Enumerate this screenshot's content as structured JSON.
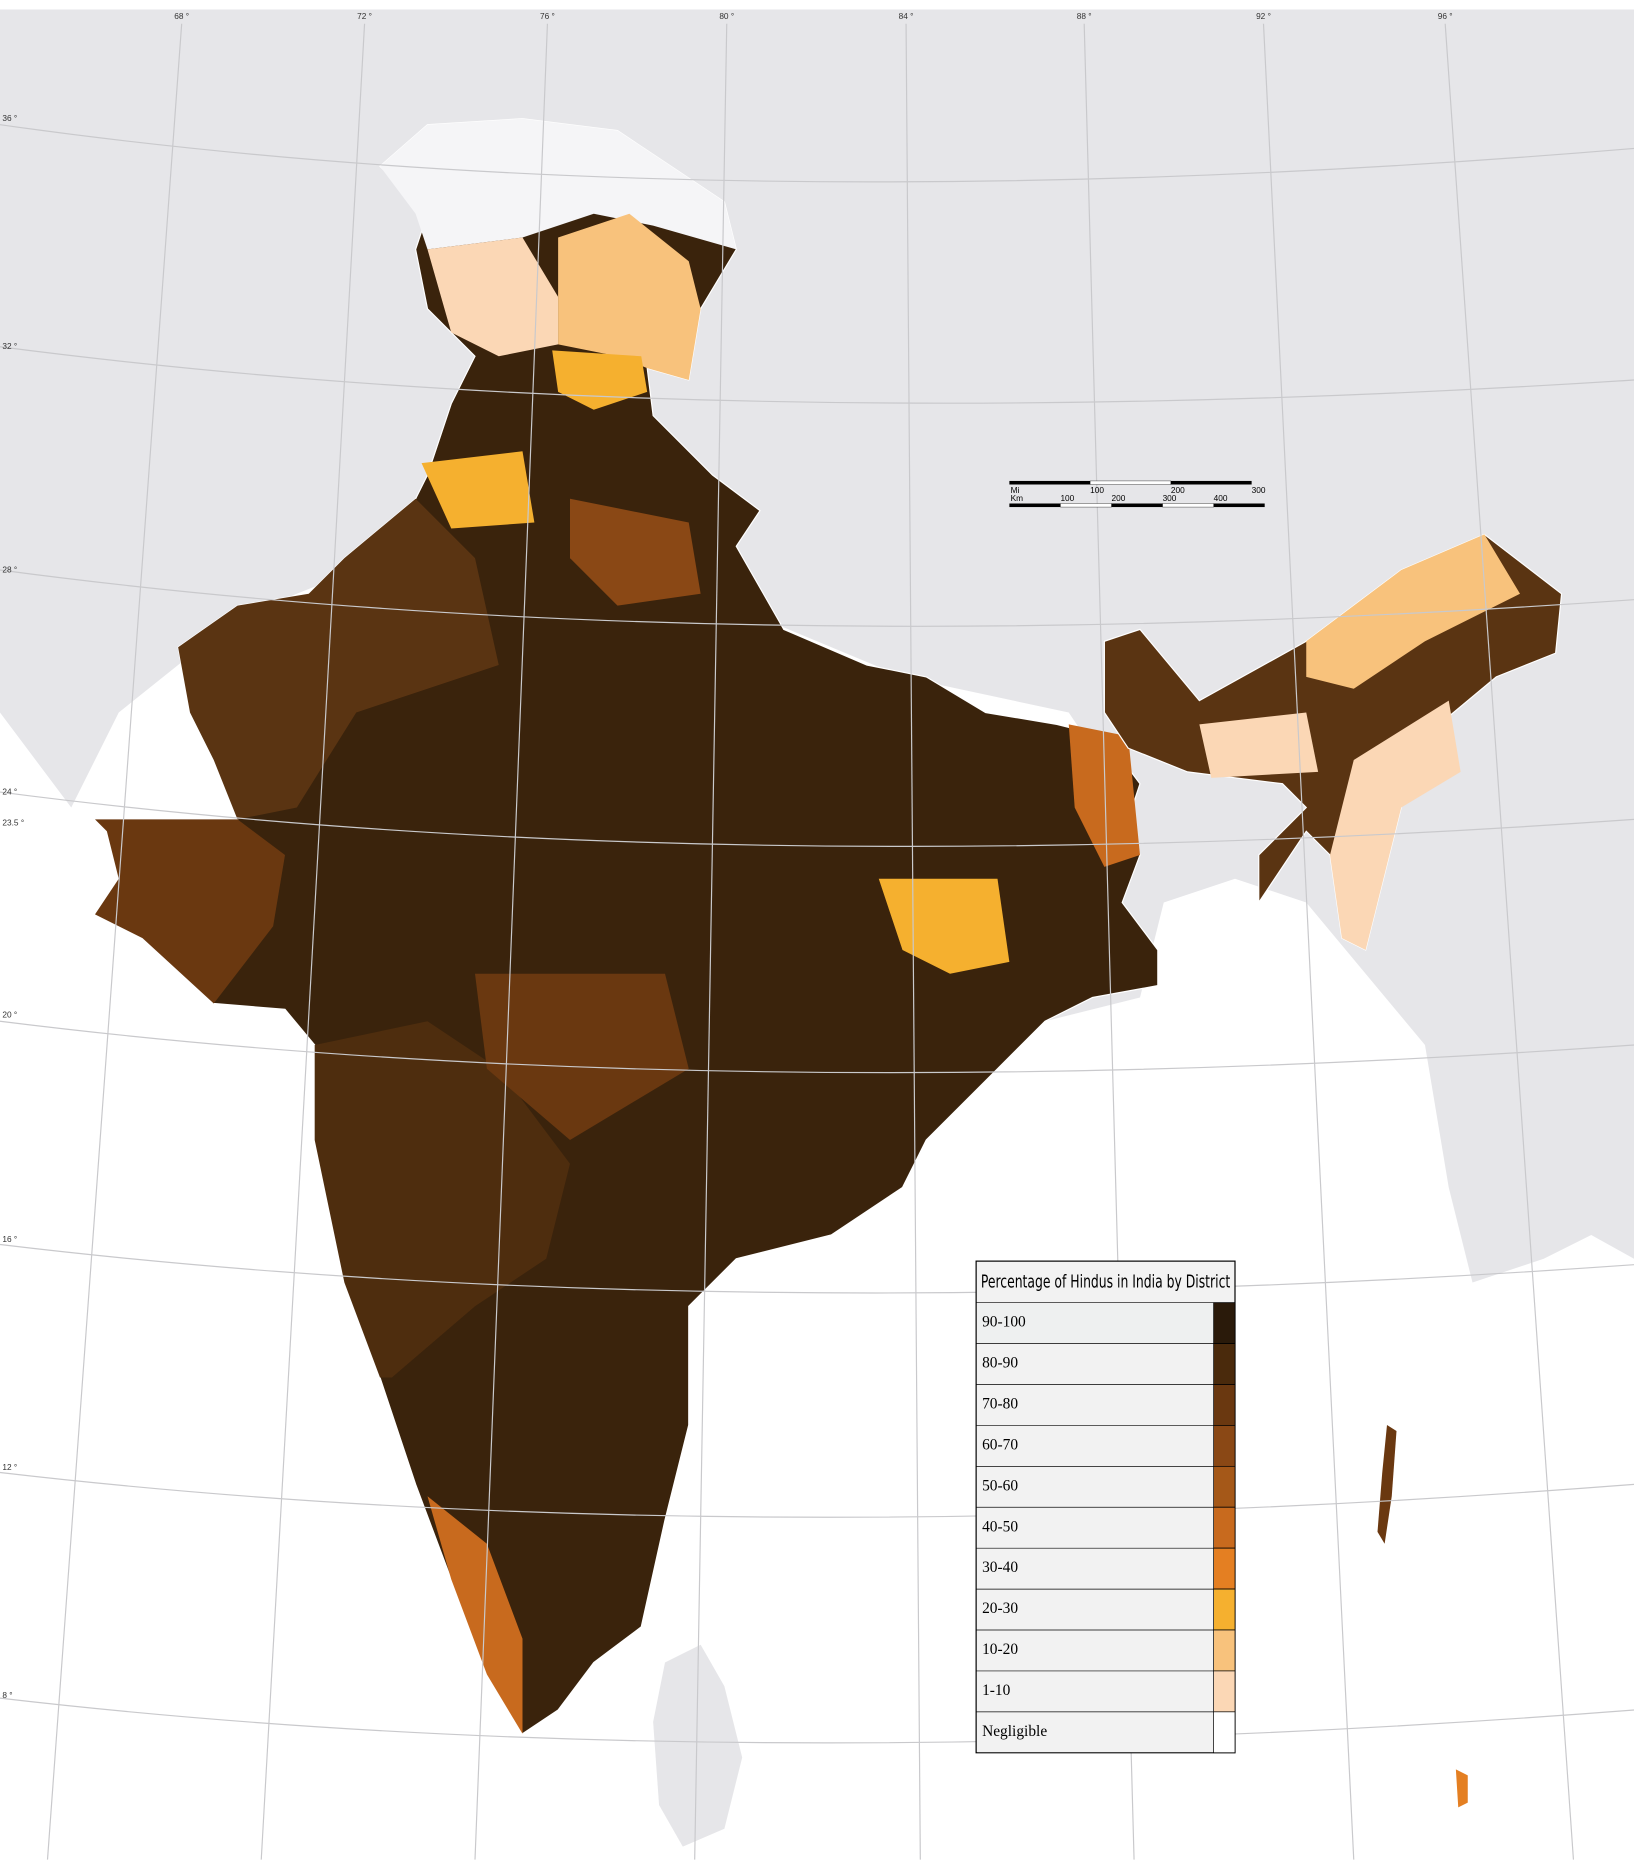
{
  "map": {
    "longitude_labels": [
      "68 °",
      "72 °",
      "76 °",
      "80 °",
      "84 °",
      "88 °",
      "92 °",
      "96 °"
    ],
    "latitude_labels": [
      "36 °",
      "32 °",
      "28 °",
      "24 °",
      "23.5 °",
      "20 °",
      "16 °",
      "12 °",
      "8 °"
    ],
    "scale_bar": {
      "miles_unit": "Mi",
      "miles_ticks": [
        "100",
        "200",
        "300"
      ],
      "km_unit": "Km",
      "km_ticks": [
        "100",
        "200",
        "300",
        "400"
      ]
    },
    "legend": {
      "title": "Percentage of Hindus in India by District",
      "entries": [
        {
          "label": "90-100",
          "color": "#2a1a0a"
        },
        {
          "label": "80-90",
          "color": "#4a2a0c"
        },
        {
          "label": "70-80",
          "color": "#6a3810"
        },
        {
          "label": "60-70",
          "color": "#8a4815"
        },
        {
          "label": "50-60",
          "color": "#a55818"
        },
        {
          "label": "40-50",
          "color": "#c86a1e"
        },
        {
          "label": "30-40",
          "color": "#e47f22"
        },
        {
          "label": "20-30",
          "color": "#f5b02f"
        },
        {
          "label": "10-20",
          "color": "#f8c27c"
        },
        {
          "label": "1-10",
          "color": "#fbd7b5"
        },
        {
          "label": "Negligible",
          "color": "#ffffff"
        }
      ]
    }
  }
}
